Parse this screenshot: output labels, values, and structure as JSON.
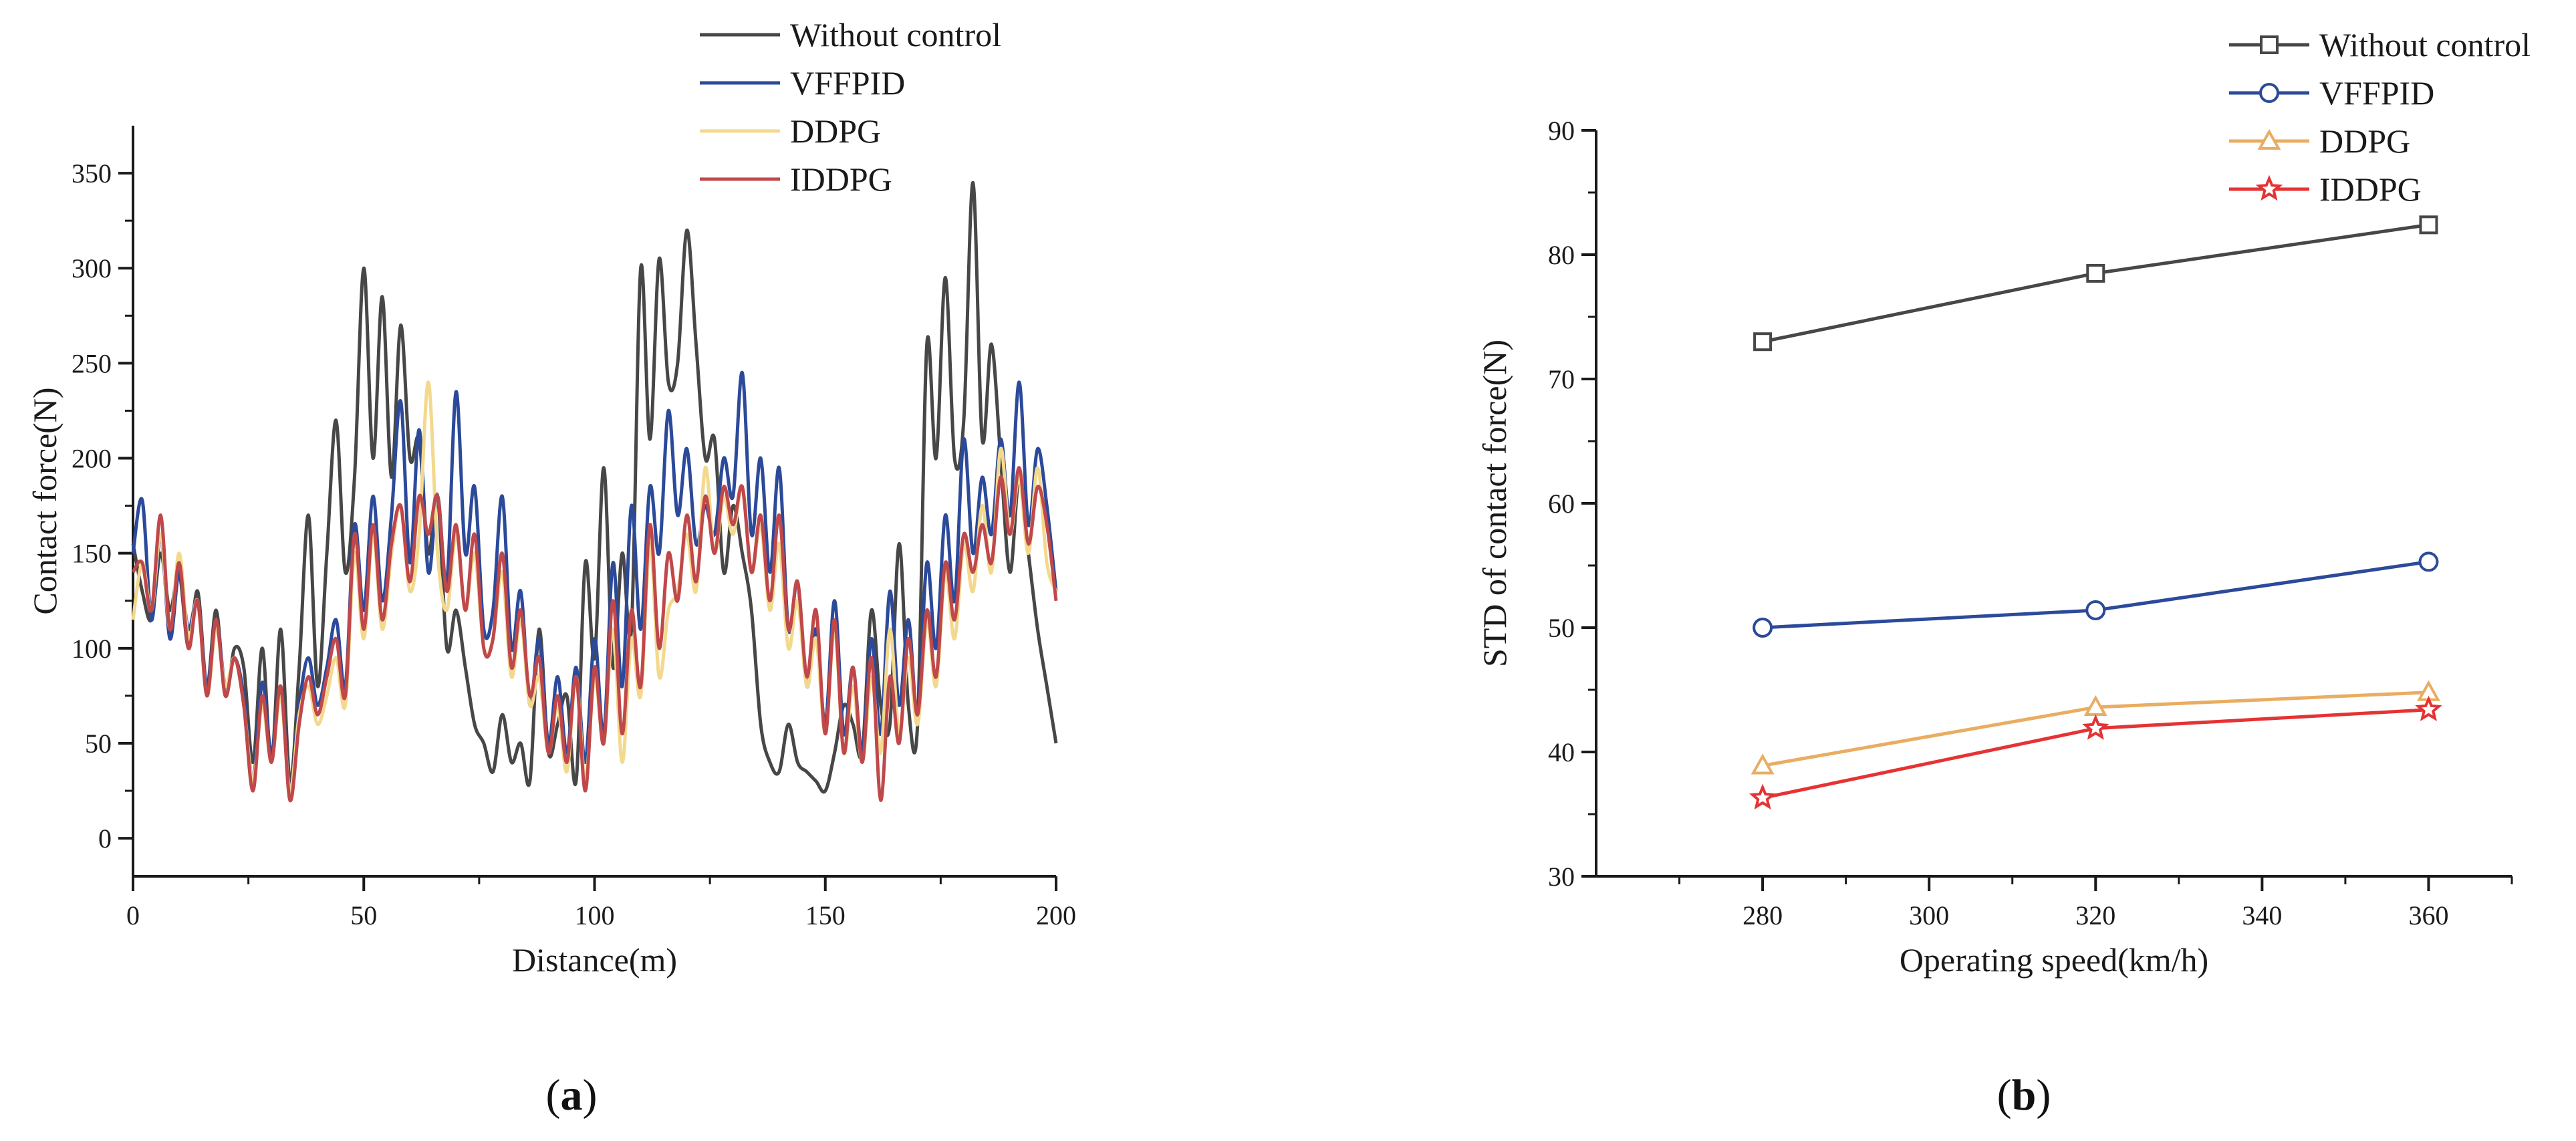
{
  "chart_data": [
    {
      "type": "line",
      "panel_label": "a",
      "xlabel": "Distance(m)",
      "ylabel": "Contact force(N)",
      "xlim": [
        0,
        200
      ],
      "ylim": [
        -20,
        375
      ],
      "xticks": [
        0,
        50,
        100,
        150,
        200
      ],
      "yticks": [
        0,
        50,
        100,
        150,
        200,
        250,
        300,
        350
      ],
      "legend_position": "top-right",
      "series": [
        {
          "name": "Without control",
          "color": "#474747",
          "x": [
            0,
            2,
            4,
            6,
            8,
            10,
            12,
            14,
            16,
            18,
            20,
            22,
            24,
            26,
            28,
            30,
            32,
            34,
            36,
            38,
            40,
            42,
            44,
            46,
            48,
            50,
            52,
            54,
            56,
            58,
            60,
            62,
            64,
            66,
            68,
            70,
            72,
            74,
            76,
            78,
            80,
            82,
            84,
            86,
            88,
            90,
            92,
            94,
            96,
            98,
            100,
            102,
            104,
            106,
            108,
            110,
            112,
            114,
            116,
            118,
            120,
            122,
            124,
            126,
            128,
            130,
            132,
            134,
            136,
            138,
            140,
            142,
            144,
            146,
            148,
            150,
            152,
            154,
            156,
            158,
            160,
            162,
            164,
            166,
            168,
            170,
            172,
            174,
            176,
            178,
            180,
            182,
            184,
            186,
            188,
            190,
            192,
            194,
            196,
            198,
            200
          ],
          "y": [
            155,
            130,
            115,
            150,
            120,
            140,
            100,
            130,
            80,
            120,
            75,
            100,
            90,
            40,
            100,
            40,
            110,
            30,
            90,
            170,
            80,
            150,
            220,
            140,
            190,
            300,
            200,
            285,
            190,
            270,
            200,
            210,
            150,
            180,
            100,
            120,
            90,
            60,
            50,
            35,
            65,
            40,
            50,
            30,
            110,
            45,
            60,
            75,
            30,
            145,
            95,
            195,
            90,
            150,
            110,
            300,
            210,
            305,
            240,
            250,
            320,
            260,
            200,
            210,
            140,
            175,
            150,
            120,
            60,
            40,
            35,
            60,
            40,
            35,
            30,
            25,
            45,
            70,
            60,
            45,
            120,
            70,
            60,
            155,
            70,
            60,
            260,
            200,
            295,
            200,
            220,
            345,
            210,
            260,
            200,
            140,
            190,
            150,
            110,
            80,
            50
          ]
        },
        {
          "name": "VFFPID",
          "color": "#2c4a9a",
          "x": [
            0,
            2,
            4,
            6,
            8,
            10,
            12,
            14,
            16,
            18,
            20,
            22,
            24,
            26,
            28,
            30,
            32,
            34,
            36,
            38,
            40,
            42,
            44,
            46,
            48,
            50,
            52,
            54,
            56,
            58,
            60,
            62,
            64,
            66,
            68,
            70,
            72,
            74,
            76,
            78,
            80,
            82,
            84,
            86,
            88,
            90,
            92,
            94,
            96,
            98,
            100,
            102,
            104,
            106,
            108,
            110,
            112,
            114,
            116,
            118,
            120,
            122,
            124,
            126,
            128,
            130,
            132,
            134,
            136,
            138,
            140,
            142,
            144,
            146,
            148,
            150,
            152,
            154,
            156,
            158,
            160,
            162,
            164,
            166,
            168,
            170,
            172,
            174,
            176,
            178,
            180,
            182,
            184,
            186,
            188,
            190,
            192,
            194,
            196,
            198,
            200
          ],
          "y": [
            150,
            178,
            115,
            160,
            105,
            140,
            110,
            125,
            80,
            115,
            80,
            95,
            75,
            30,
            82,
            45,
            80,
            25,
            70,
            95,
            70,
            90,
            115,
            80,
            165,
            120,
            180,
            125,
            170,
            230,
            145,
            215,
            140,
            180,
            135,
            235,
            150,
            185,
            110,
            120,
            180,
            100,
            130,
            70,
            105,
            50,
            85,
            45,
            90,
            40,
            105,
            55,
            145,
            80,
            175,
            110,
            185,
            150,
            225,
            170,
            205,
            155,
            175,
            160,
            200,
            180,
            245,
            160,
            200,
            140,
            195,
            110,
            135,
            80,
            110,
            60,
            125,
            55,
            90,
            45,
            105,
            55,
            130,
            70,
            115,
            65,
            145,
            100,
            170,
            125,
            210,
            150,
            190,
            160,
            210,
            170,
            240,
            165,
            205,
            175,
            130
          ]
        },
        {
          "name": "DDPG",
          "color": "#f3d98e",
          "x": [
            0,
            2,
            4,
            6,
            8,
            10,
            12,
            14,
            16,
            18,
            20,
            22,
            24,
            26,
            28,
            30,
            32,
            34,
            36,
            38,
            40,
            42,
            44,
            46,
            48,
            50,
            52,
            54,
            56,
            58,
            60,
            62,
            64,
            66,
            68,
            70,
            72,
            74,
            76,
            78,
            80,
            82,
            84,
            86,
            88,
            90,
            92,
            94,
            96,
            98,
            100,
            102,
            104,
            106,
            108,
            110,
            112,
            114,
            116,
            118,
            120,
            122,
            124,
            126,
            128,
            130,
            132,
            134,
            136,
            138,
            140,
            142,
            144,
            146,
            148,
            150,
            152,
            154,
            156,
            158,
            160,
            162,
            164,
            166,
            168,
            170,
            172,
            174,
            176,
            178,
            180,
            182,
            184,
            186,
            188,
            190,
            192,
            194,
            196,
            198,
            200
          ],
          "y": [
            115,
            145,
            120,
            160,
            110,
            150,
            105,
            125,
            75,
            110,
            80,
            95,
            70,
            30,
            70,
            40,
            75,
            25,
            65,
            80,
            60,
            75,
            95,
            70,
            150,
            105,
            160,
            110,
            150,
            175,
            130,
            160,
            240,
            150,
            120,
            160,
            120,
            150,
            100,
            105,
            140,
            85,
            115,
            70,
            85,
            45,
            70,
            35,
            85,
            30,
            85,
            50,
            110,
            40,
            105,
            75,
            155,
            85,
            120,
            130,
            160,
            130,
            195,
            150,
            180,
            160,
            185,
            140,
            165,
            120,
            155,
            100,
            125,
            80,
            105,
            55,
            110,
            45,
            80,
            40,
            85,
            45,
            110,
            55,
            95,
            60,
            115,
            80,
            140,
            105,
            155,
            130,
            175,
            140,
            205,
            160,
            190,
            150,
            195,
            145,
            130
          ]
        },
        {
          "name": "IDDPG",
          "color": "#c0484a",
          "x": [
            0,
            2,
            4,
            6,
            8,
            10,
            12,
            14,
            16,
            18,
            20,
            22,
            24,
            26,
            28,
            30,
            32,
            34,
            36,
            38,
            40,
            42,
            44,
            46,
            48,
            50,
            52,
            54,
            56,
            58,
            60,
            62,
            64,
            66,
            68,
            70,
            72,
            74,
            76,
            78,
            80,
            82,
            84,
            86,
            88,
            90,
            92,
            94,
            96,
            98,
            100,
            102,
            104,
            106,
            108,
            110,
            112,
            114,
            116,
            118,
            120,
            122,
            124,
            126,
            128,
            130,
            132,
            134,
            136,
            138,
            140,
            142,
            144,
            146,
            148,
            150,
            152,
            154,
            156,
            158,
            160,
            162,
            164,
            166,
            168,
            170,
            172,
            174,
            176,
            178,
            180,
            182,
            184,
            186,
            188,
            190,
            192,
            194,
            196,
            198,
            200
          ],
          "y": [
            140,
            145,
            120,
            170,
            110,
            145,
            100,
            125,
            75,
            115,
            75,
            95,
            70,
            25,
            75,
            40,
            80,
            20,
            60,
            85,
            65,
            85,
            105,
            75,
            160,
            110,
            165,
            115,
            155,
            175,
            135,
            180,
            160,
            180,
            130,
            165,
            120,
            160,
            100,
            105,
            150,
            90,
            120,
            75,
            95,
            45,
            75,
            40,
            85,
            25,
            90,
            50,
            125,
            55,
            120,
            80,
            165,
            100,
            150,
            125,
            170,
            135,
            180,
            150,
            185,
            165,
            185,
            140,
            170,
            125,
            170,
            110,
            135,
            85,
            120,
            55,
            115,
            45,
            90,
            40,
            95,
            20,
            85,
            50,
            105,
            65,
            120,
            85,
            145,
            115,
            160,
            140,
            165,
            145,
            190,
            160,
            195,
            155,
            185,
            165,
            125
          ]
        }
      ]
    },
    {
      "type": "line",
      "panel_label": "b",
      "xlabel": "Operating speed(km/h)",
      "ylabel": "STD of contact force(N)",
      "xlim": [
        260,
        370
      ],
      "ylim": [
        30,
        90
      ],
      "xticks": [
        280,
        300,
        320,
        340,
        360
      ],
      "yticks": [
        30,
        40,
        50,
        60,
        70,
        80,
        90
      ],
      "legend_position": "top-right",
      "series": [
        {
          "name": "Without control",
          "color": "#474747",
          "marker": "square",
          "x": [
            280,
            320,
            360
          ],
          "y": [
            73.0,
            78.5,
            82.4
          ]
        },
        {
          "name": "VFFPID",
          "color": "#2c4a9a",
          "marker": "circle",
          "x": [
            280,
            320,
            360
          ],
          "y": [
            50.0,
            51.4,
            55.3
          ]
        },
        {
          "name": "DDPG",
          "color": "#e9ad62",
          "marker": "triangle",
          "x": [
            280,
            320,
            360
          ],
          "y": [
            38.9,
            43.6,
            44.8
          ]
        },
        {
          "name": "IDDPG",
          "color": "#e53334",
          "marker": "star",
          "x": [
            280,
            320,
            360
          ],
          "y": [
            36.3,
            41.9,
            43.4
          ]
        }
      ]
    }
  ]
}
